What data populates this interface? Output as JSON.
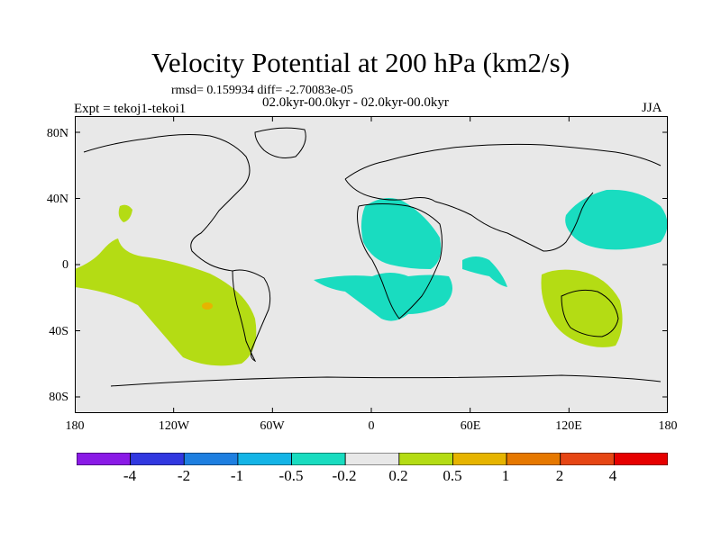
{
  "title": "Velocity Potential at 200 hPa (km2/s)",
  "stats": "rmsd= 0.159934 diff= -2.70083e-05",
  "experiment": "Expt = tekoj1-tekoi1",
  "period": "02.0kyr-00.0kyr - 02.0kyr-00.0kyr",
  "season": "JJA",
  "lat_labels": [
    "80N",
    "40N",
    "0",
    "40S",
    "80S"
  ],
  "lon_labels": [
    "180",
    "120W",
    "60W",
    "0",
    "60E",
    "120E",
    "180"
  ],
  "colorbar": {
    "colors": [
      "#8a1ae6",
      "#3138e0",
      "#1e7fe0",
      "#14b4e6",
      "#19dcc0",
      "#e8e8e8",
      "#b4dc14",
      "#e6b400",
      "#e67800",
      "#e64614",
      "#e60000"
    ],
    "labels": [
      "-4",
      "-2",
      "-1",
      "-0.5",
      "-0.2",
      "0.2",
      "0.5",
      "1",
      "2",
      "4"
    ]
  },
  "map": {
    "background_color": "#e8e8e8",
    "negative_fill": "#19dcc0",
    "positive_fill": "#b4dc14",
    "max_fill": "#e6b400"
  }
}
